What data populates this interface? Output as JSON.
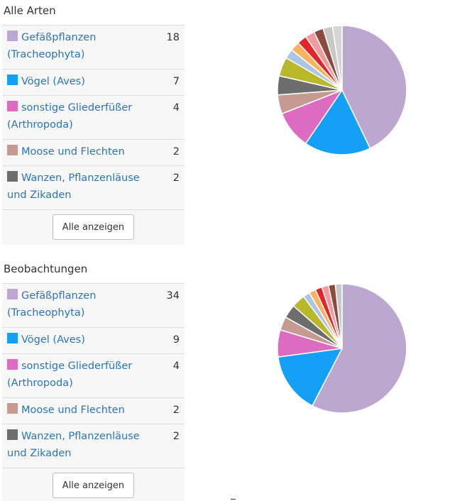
{
  "sections": [
    {
      "title": "Alle Arten",
      "button_label": "Alle anzeigen",
      "rows": [
        {
          "label": "Gefäßpflanzen (Tracheophyta)",
          "count": "18",
          "color": "#bca7d0"
        },
        {
          "label": "Vögel (Aves)",
          "count": "7",
          "color": "#14a0f5"
        },
        {
          "label": "sonstige Gliederfüßer (Arthropoda)",
          "count": "4",
          "color": "#dc6cc2"
        },
        {
          "label": "Moose und Flechten",
          "count": "2",
          "color": "#c59a91"
        },
        {
          "label": "Wanzen, Pflanzenläuse und Zikaden",
          "count": "2",
          "color": "#6d6d6d"
        }
      ]
    },
    {
      "title": "Beobachtungen",
      "button_label": "Alle anzeigen",
      "rows": [
        {
          "label": "Gefäßpflanzen (Tracheophyta)",
          "count": "34",
          "color": "#bca7d0"
        },
        {
          "label": "Vögel (Aves)",
          "count": "9",
          "color": "#14a0f5"
        },
        {
          "label": "sonstige Gliederfüßer (Arthropoda)",
          "count": "4",
          "color": "#dc6cc2"
        },
        {
          "label": "Moose und Flechten",
          "count": "2",
          "color": "#c59a91"
        },
        {
          "label": "Wanzen, Pflanzenläuse und Zikaden",
          "count": "2",
          "color": "#6d6d6d"
        }
      ]
    }
  ],
  "chart_data": [
    {
      "type": "pie",
      "title": "",
      "categories": [
        "Gefäßpflanzen (Tracheophyta)",
        "Vögel (Aves)",
        "sonstige Gliederfüßer (Arthropoda)",
        "Moose und Flechten",
        "Wanzen, Pflanzenläuse und Zikaden",
        "",
        "",
        "",
        "",
        "",
        "",
        "",
        ""
      ],
      "values": [
        18,
        7,
        4,
        2,
        2,
        2,
        1,
        1,
        1,
        1,
        1,
        1,
        1
      ],
      "colors": [
        "#bca7d0",
        "#14a0f5",
        "#dc6cc2",
        "#c59a91",
        "#6d6d6d",
        "#b9b82b",
        "#aac6e6",
        "#fdb25f",
        "#e0262a",
        "#f59a9c",
        "#8c4a3d",
        "#c8c8c8",
        "#d5d5d5"
      ]
    },
    {
      "type": "pie",
      "title": "",
      "categories": [
        "Gefäßpflanzen (Tracheophyta)",
        "Vögel (Aves)",
        "sonstige Gliederfüßer (Arthropoda)",
        "Moose und Flechten",
        "Wanzen, Pflanzenläuse und Zikaden",
        "",
        "",
        "",
        "",
        "",
        "",
        ""
      ],
      "values": [
        34,
        9,
        4,
        2,
        2,
        2,
        1,
        1,
        1,
        1,
        1,
        1
      ],
      "colors": [
        "#bca7d0",
        "#14a0f5",
        "#dc6cc2",
        "#c59a91",
        "#6d6d6d",
        "#b9b82b",
        "#aac6e6",
        "#fdb25f",
        "#e0262a",
        "#f59a9c",
        "#8c4a3d",
        "#c8c8c8"
      ]
    }
  ]
}
